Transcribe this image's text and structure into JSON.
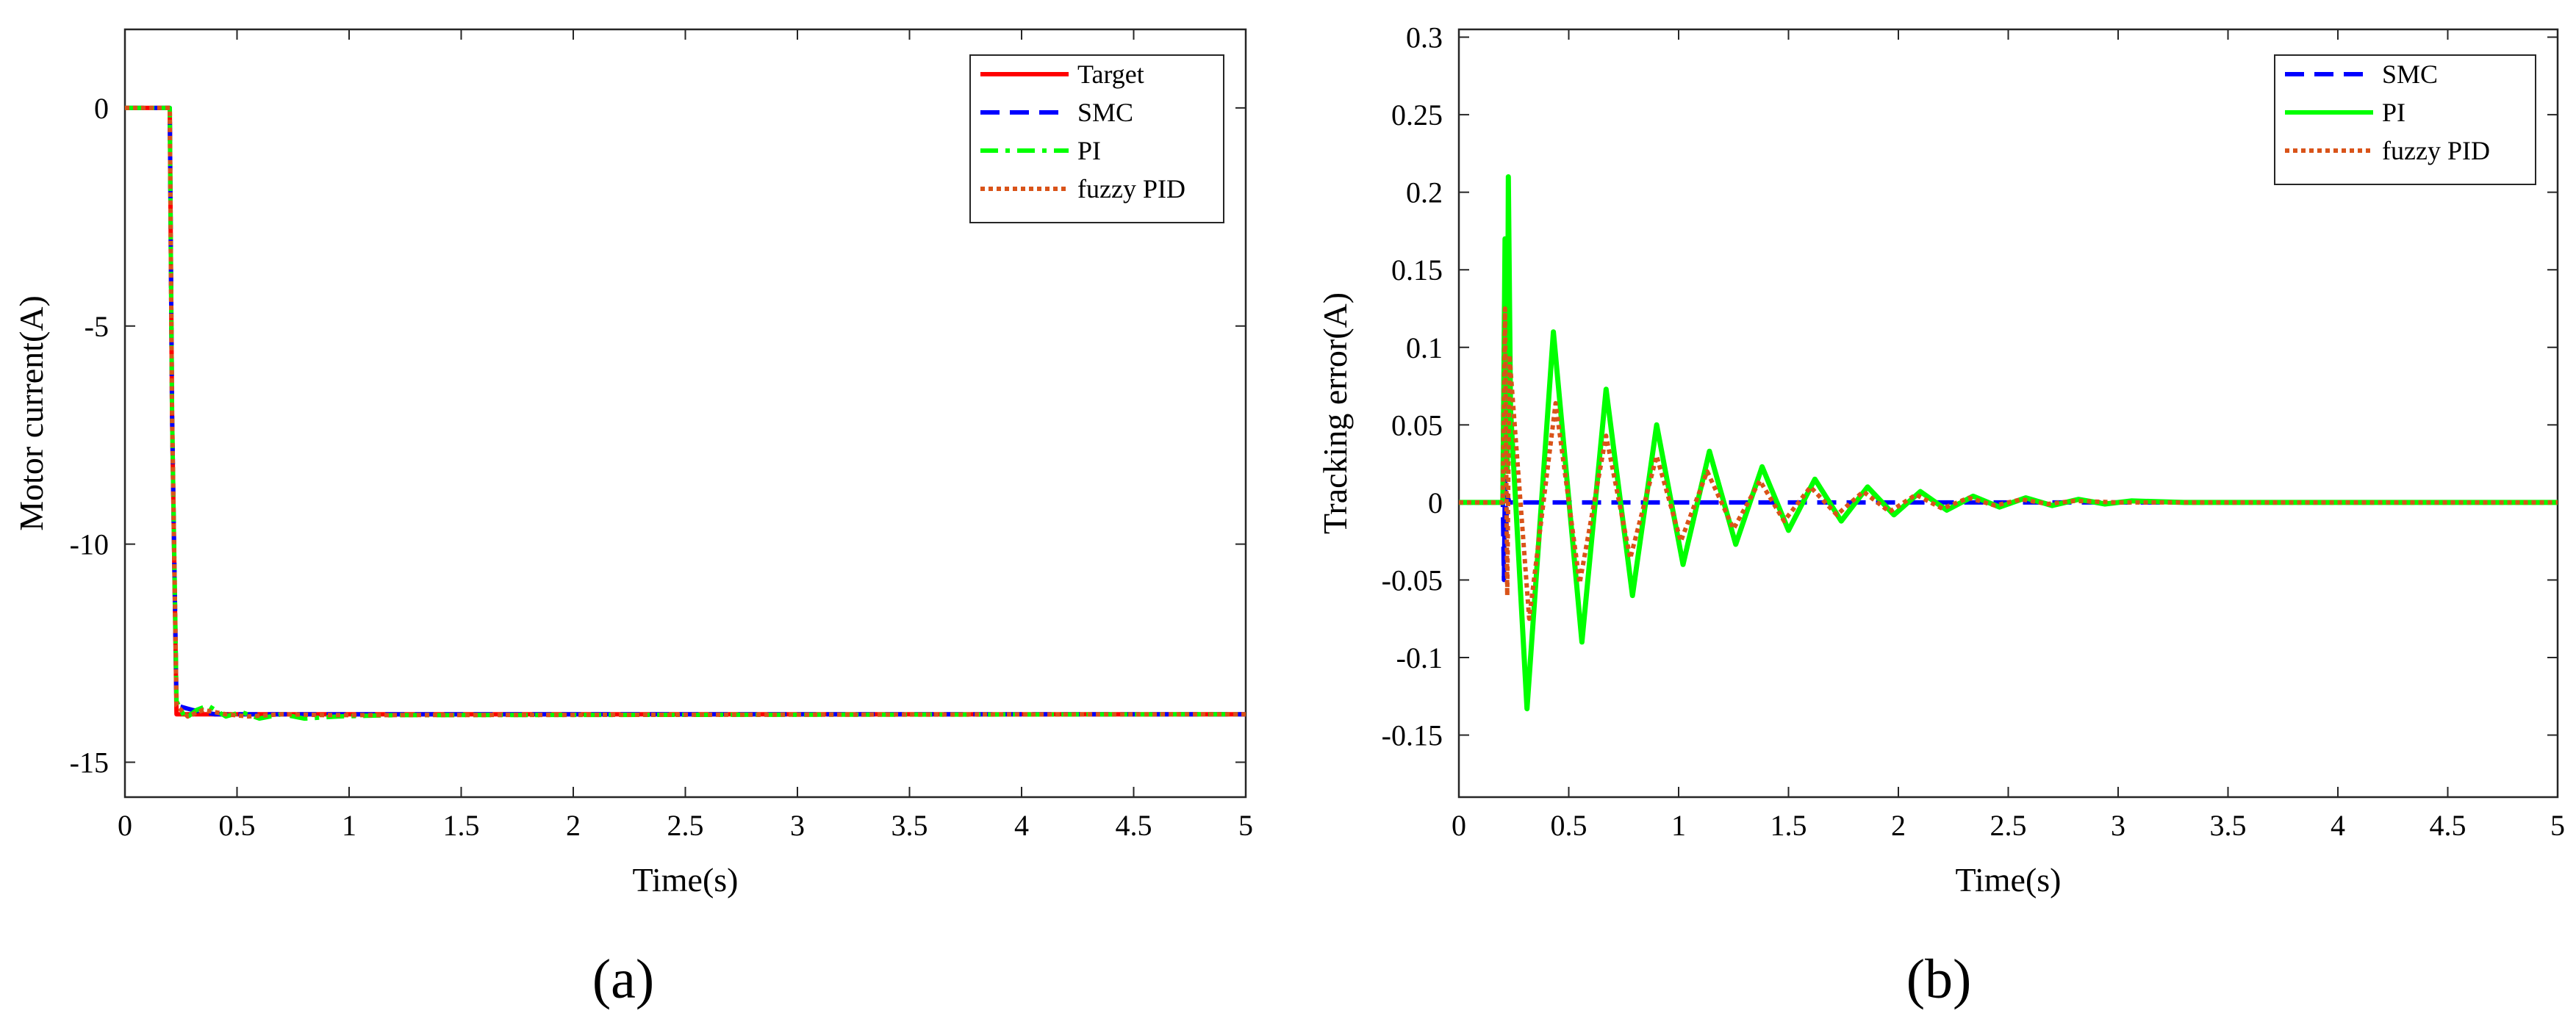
{
  "chart_data": [
    {
      "type": "line",
      "panel_label": "(a)",
      "xlabel": "Time(s)",
      "ylabel": "Motor current(A)",
      "xlim": [
        0,
        5
      ],
      "ylim": [
        -15.8,
        1.8
      ],
      "xticks": [
        0,
        0.5,
        1,
        1.5,
        2,
        2.5,
        3,
        3.5,
        4,
        4.5,
        5
      ],
      "xtick_labels": [
        "0",
        "0.5",
        "1",
        "1.5",
        "2",
        "2.5",
        "3",
        "3.5",
        "4",
        "4.5",
        "5"
      ],
      "yticks": [
        0,
        -5,
        -10,
        -15
      ],
      "ytick_labels": [
        "0",
        "-5",
        "-10",
        "-15"
      ],
      "legend_position": "top-right",
      "series": [
        {
          "name": "Target",
          "color": "#ff0000",
          "style": "solid",
          "x": [
            0,
            0.2,
            0.21,
            0.23,
            5
          ],
          "y": [
            0,
            0,
            -7,
            -13.9,
            -13.9
          ]
        },
        {
          "name": "SMC",
          "color": "#0000ff",
          "style": "dashed",
          "x": [
            0,
            0.2,
            0.21,
            0.23,
            0.3,
            0.4,
            5
          ],
          "y": [
            0,
            0,
            -7,
            -13.7,
            -13.8,
            -13.9,
            -13.9
          ]
        },
        {
          "name": "PI",
          "color": "#00ff00",
          "style": "dashdot",
          "x": [
            0,
            0.2,
            0.21,
            0.23,
            0.27,
            0.32,
            0.37,
            0.45,
            0.52,
            0.6,
            0.7,
            0.8,
            0.95,
            1.2,
            5
          ],
          "y": [
            0,
            0,
            -7,
            -13.6,
            -14.0,
            -13.8,
            -13.7,
            -13.95,
            -13.85,
            -14.0,
            -13.9,
            -14.0,
            -13.95,
            -13.92,
            -13.9
          ]
        },
        {
          "name": "fuzzy PID",
          "color": "#d95319",
          "style": "dotted",
          "x": [
            0,
            0.2,
            0.21,
            0.23,
            0.28,
            0.35,
            0.45,
            0.55,
            0.7,
            0.9,
            5
          ],
          "y": [
            0,
            0,
            -7,
            -13.7,
            -13.95,
            -13.8,
            -13.9,
            -13.95,
            -13.9,
            -13.92,
            -13.9
          ]
        }
      ]
    },
    {
      "type": "line",
      "panel_label": "(b)",
      "xlabel": "Time(s)",
      "ylabel": "Tracking error(A)",
      "xlim": [
        0,
        5
      ],
      "ylim": [
        -0.19,
        0.305
      ],
      "xticks": [
        0,
        0.5,
        1,
        1.5,
        2,
        2.5,
        3,
        3.5,
        4,
        4.5,
        5
      ],
      "xtick_labels": [
        "0",
        "0.5",
        "1",
        "1.5",
        "2",
        "2.5",
        "3",
        "3.5",
        "4",
        "4.5",
        "5"
      ],
      "yticks": [
        -0.15,
        -0.1,
        -0.05,
        0,
        0.05,
        0.1,
        0.15,
        0.2,
        0.25,
        0.3
      ],
      "ytick_labels": [
        "-0.15",
        "-0.1",
        "-0.05",
        "0",
        "0.05",
        "0.1",
        "0.15",
        "0.2",
        "0.25",
        "0.3"
      ],
      "legend_position": "top-right",
      "series": [
        {
          "name": "SMC",
          "color": "#0000ff",
          "style": "dashed",
          "x": [
            0,
            0.2,
            0.205,
            0.21,
            0.215,
            0.22,
            0.23,
            5
          ],
          "y": [
            0,
            0,
            -0.05,
            0.02,
            -0.02,
            0.005,
            0,
            0
          ]
        },
        {
          "name": "PI",
          "color": "#00ff00",
          "style": "solid",
          "x": [
            0,
            0.2,
            0.21,
            0.22,
            0.225,
            0.235,
            0.31,
            0.43,
            0.56,
            0.67,
            0.79,
            0.9,
            1.02,
            1.14,
            1.26,
            1.38,
            1.5,
            1.62,
            1.74,
            1.86,
            1.98,
            2.1,
            2.22,
            2.34,
            2.46,
            2.58,
            2.7,
            2.82,
            2.94,
            3.06,
            3.3,
            5
          ],
          "y": [
            0,
            0,
            0.17,
            0.02,
            0.21,
            0.06,
            -0.133,
            0.11,
            -0.09,
            0.073,
            -0.06,
            0.05,
            -0.04,
            0.033,
            -0.027,
            0.023,
            -0.018,
            0.015,
            -0.012,
            0.01,
            -0.008,
            0.007,
            -0.005,
            0.004,
            -0.003,
            0.003,
            -0.002,
            0.002,
            -0.001,
            0.001,
            0,
            0
          ]
        },
        {
          "name": "fuzzy PID",
          "color": "#d95319",
          "style": "dotted",
          "x": [
            0,
            0.2,
            0.21,
            0.22,
            0.23,
            0.32,
            0.44,
            0.55,
            0.67,
            0.78,
            0.9,
            1.01,
            1.13,
            1.25,
            1.37,
            1.48,
            1.6,
            1.72,
            1.84,
            1.96,
            2.08,
            2.2,
            2.32,
            2.44,
            2.56,
            2.68,
            2.8,
            3.0,
            5
          ],
          "y": [
            0,
            0,
            0.125,
            -0.06,
            0.095,
            -0.075,
            0.064,
            -0.052,
            0.043,
            -0.036,
            0.03,
            -0.025,
            0.02,
            -0.017,
            0.014,
            -0.012,
            0.01,
            -0.008,
            0.007,
            -0.006,
            0.005,
            -0.004,
            0.003,
            -0.002,
            0.002,
            -0.001,
            0.001,
            0,
            0
          ]
        }
      ]
    }
  ]
}
